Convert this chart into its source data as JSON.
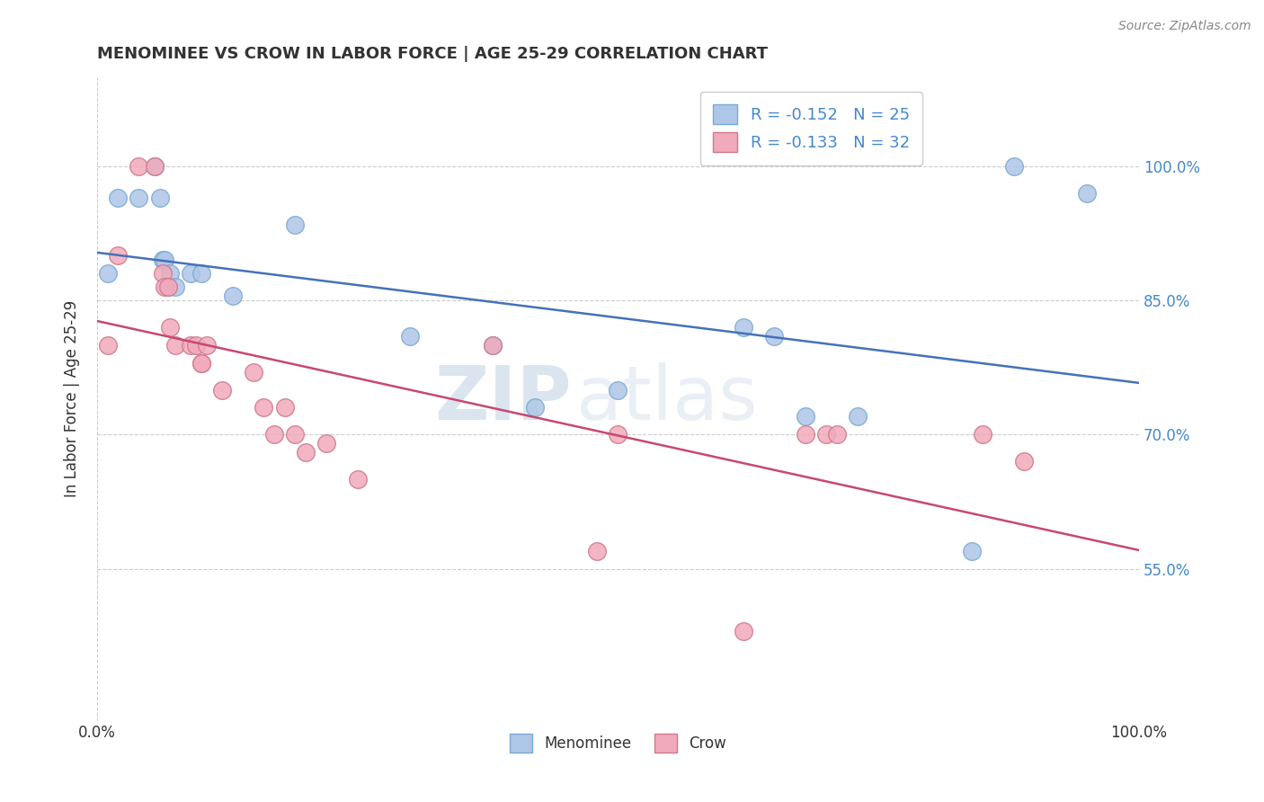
{
  "title": "MENOMINEE VS CROW IN LABOR FORCE | AGE 25-29 CORRELATION CHART",
  "source_text": "Source: ZipAtlas.com",
  "ylabel": "In Labor Force | Age 25-29",
  "xlim": [
    0,
    1
  ],
  "ylim": [
    0.38,
    1.1
  ],
  "xtick_labels": [
    "0.0%",
    "100.0%"
  ],
  "xtick_pos": [
    0.0,
    1.0
  ],
  "ytick_labels": [
    "55.0%",
    "70.0%",
    "85.0%",
    "100.0%"
  ],
  "ytick_pos": [
    0.55,
    0.7,
    0.85,
    1.0
  ],
  "menominee_x": [
    0.01,
    0.02,
    0.04,
    0.055,
    0.06,
    0.063,
    0.065,
    0.068,
    0.07,
    0.075,
    0.09,
    0.1,
    0.13,
    0.19,
    0.3,
    0.38,
    0.42,
    0.5,
    0.62,
    0.65,
    0.68,
    0.73,
    0.84,
    0.88,
    0.95
  ],
  "menominee_y": [
    0.88,
    0.965,
    0.965,
    1.0,
    0.965,
    0.895,
    0.895,
    0.865,
    0.88,
    0.865,
    0.88,
    0.88,
    0.855,
    0.935,
    0.81,
    0.8,
    0.73,
    0.75,
    0.82,
    0.81,
    0.72,
    0.72,
    0.57,
    1.0,
    0.97
  ],
  "crow_x": [
    0.01,
    0.02,
    0.04,
    0.055,
    0.063,
    0.065,
    0.068,
    0.07,
    0.075,
    0.09,
    0.095,
    0.1,
    0.1,
    0.105,
    0.12,
    0.15,
    0.16,
    0.17,
    0.18,
    0.19,
    0.2,
    0.22,
    0.25,
    0.38,
    0.48,
    0.5,
    0.62,
    0.68,
    0.7,
    0.71,
    0.85,
    0.89
  ],
  "crow_y": [
    0.8,
    0.9,
    1.0,
    1.0,
    0.88,
    0.865,
    0.865,
    0.82,
    0.8,
    0.8,
    0.8,
    0.78,
    0.78,
    0.8,
    0.75,
    0.77,
    0.73,
    0.7,
    0.73,
    0.7,
    0.68,
    0.69,
    0.65,
    0.8,
    0.57,
    0.7,
    0.48,
    0.7,
    0.7,
    0.7,
    0.7,
    0.67
  ],
  "menominee_color": "#aec6e8",
  "menominee_edge": "#7aaad0",
  "crow_color": "#f0aabb",
  "crow_edge": "#d07888",
  "trendline_menominee_color": "#4472b8",
  "trendline_crow_color": "#c84870",
  "background_color": "#ffffff",
  "grid_color": "#cccccc",
  "watermark_zip": "ZIP",
  "watermark_atlas": "atlas",
  "R_menominee": -0.152,
  "N_menominee": 25,
  "R_crow": -0.133,
  "N_crow": 32
}
